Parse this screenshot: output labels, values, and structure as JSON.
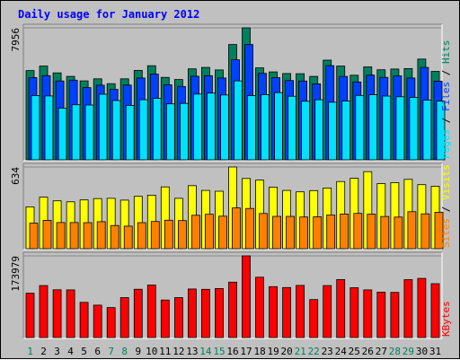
{
  "chart_data": {
    "type": "bar",
    "title": "Daily usage for January 2012",
    "categories": [
      "1",
      "2",
      "3",
      "4",
      "5",
      "6",
      "7",
      "8",
      "9",
      "10",
      "11",
      "12",
      "13",
      "14",
      "15",
      "16",
      "17",
      "18",
      "19",
      "20",
      "21",
      "22",
      "23",
      "24",
      "25",
      "26",
      "27",
      "28",
      "29",
      "30",
      "31"
    ],
    "weekend_days": [
      "1",
      "7",
      "8",
      "14",
      "15",
      "21",
      "22",
      "28",
      "29"
    ],
    "panels": [
      {
        "name": "hits-files-pages",
        "max_label": "7956",
        "ylim": [
          0,
          7956
        ],
        "series": [
          {
            "name": "Hits",
            "color": "#00805c",
            "values": [
              5380,
              5650,
              5240,
              5030,
              4760,
              4880,
              4590,
              4880,
              5390,
              5670,
              4970,
              4840,
              5480,
              5570,
              5420,
              6950,
              7956,
              5540,
              5300,
              5200,
              5190,
              5030,
              6010,
              5650,
              5100,
              5600,
              5430,
              5470,
              5500,
              6070,
              5330
            ]
          },
          {
            "name": "Files",
            "color": "#0040ff",
            "values": [
              4960,
              5070,
              4750,
              4800,
              4350,
              4500,
              4250,
              4510,
              4930,
              5170,
              4520,
              4420,
              5040,
              5070,
              4930,
              6030,
              6950,
              5210,
              4950,
              4780,
              4750,
              4580,
              5680,
              5030,
              4690,
              5110,
              4970,
              5060,
              4930,
              5570,
              4740
            ]
          },
          {
            "name": "Pages",
            "color": "#00e0ff",
            "values": [
              3870,
              3850,
              3120,
              3320,
              3300,
              3950,
              3570,
              3280,
              3620,
              3700,
              3370,
              3400,
              3960,
              4020,
              3910,
              4760,
              3870,
              3930,
              4050,
              3830,
              3530,
              3620,
              3470,
              3540,
              3880,
              3920,
              3840,
              3800,
              3760,
              3600,
              3540
            ]
          }
        ]
      },
      {
        "name": "visits-sites",
        "max_label": "634",
        "ylim": [
          0,
          634
        ],
        "series": [
          {
            "name": "Visits",
            "color": "#ffff00",
            "values": [
              325,
              400,
              371,
              364,
              378,
              389,
              391,
              377,
              406,
              415,
              479,
              391,
              489,
              452,
              446,
              634,
              545,
              532,
              477,
              452,
              441,
              451,
              471,
              521,
              546,
              598,
              505,
              513,
              538,
              497,
              484
            ]
          },
          {
            "name": "Sites",
            "color": "#ff8000",
            "values": [
              198,
              220,
              203,
              203,
              202,
              210,
              180,
              175,
              202,
              211,
              221,
              218,
              259,
              267,
              252,
              316,
              312,
              273,
              251,
              251,
              246,
              248,
              261,
              269,
              274,
              268,
              250,
              245,
              287,
              270,
              283
            ]
          }
        ]
      },
      {
        "name": "kbytes",
        "max_label": "173979",
        "ylim": [
          0,
          173979
        ],
        "series": [
          {
            "name": "KBytes",
            "color": "#ff0000",
            "values": [
              94400,
              110780,
              101700,
              101580,
              75000,
              68950,
              63920,
              85060,
              102920,
              111830,
              79950,
              85060,
              103450,
              102640,
              104460,
              117980,
              173979,
              128500,
              108350,
              106510,
              111160,
              80810,
              110770,
              123590,
              106070,
              101600,
              96740,
              96140,
              123310,
              125960,
              114620
            ]
          }
        ]
      }
    ]
  }
}
